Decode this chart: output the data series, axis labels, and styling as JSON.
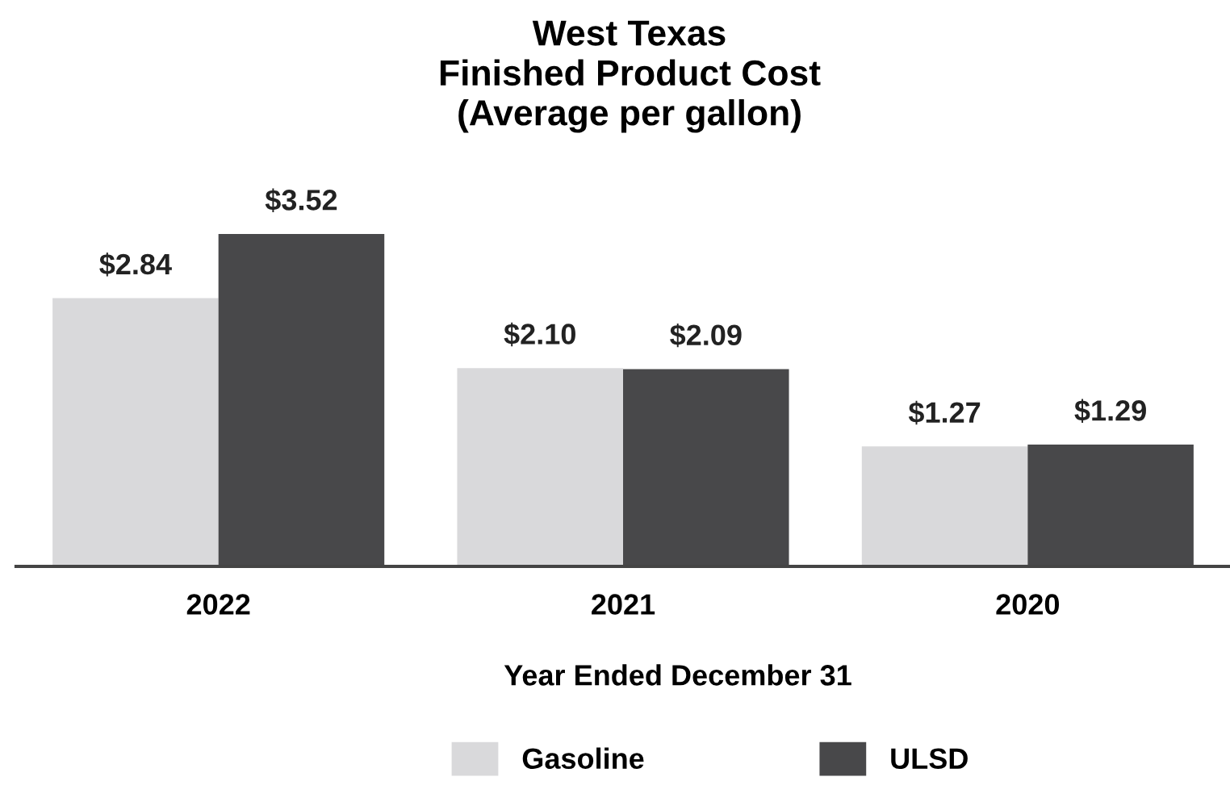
{
  "chart_data": {
    "type": "bar",
    "title": "West Texas\nFinished Product Cost\n(Average per gallon)",
    "xlabel": "Year Ended December 31",
    "categories": [
      "2022",
      "2021",
      "2020"
    ],
    "series": [
      {
        "name": "Gasoline",
        "color": "#d9d9db",
        "values": [
          2.84,
          2.1,
          1.27
        ],
        "value_labels": [
          "$2.84",
          "$2.10",
          "$1.27"
        ]
      },
      {
        "name": "ULSD",
        "color": "#48484a",
        "values": [
          3.52,
          2.09,
          1.29
        ],
        "value_labels": [
          "$3.52",
          "$2.09",
          "$1.29"
        ]
      }
    ],
    "legend": "bottom",
    "grid": false
  }
}
